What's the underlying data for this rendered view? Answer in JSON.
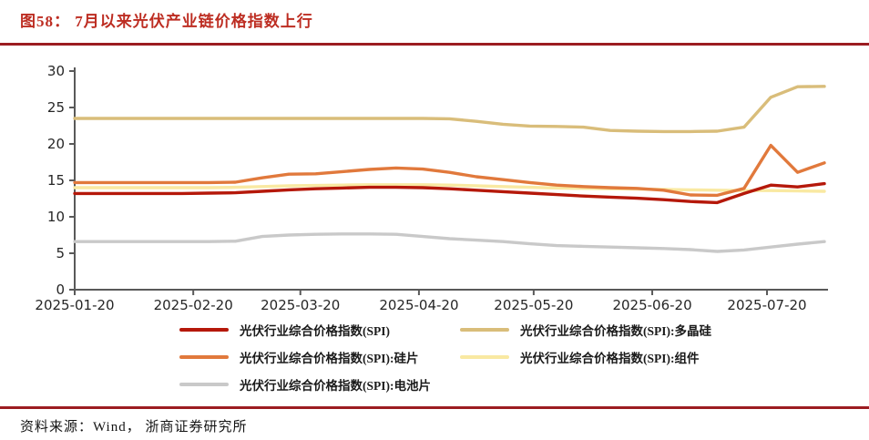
{
  "header": {
    "title": "图58：  7月以来光伏产业链价格指数上行",
    "accent_color": "#9c1c21",
    "title_color": "#bd2d22"
  },
  "footer": {
    "source": "资料来源：Wind， 浙商证券研究所"
  },
  "chart_data": {
    "type": "line",
    "title": "",
    "xlabel": "",
    "ylabel": "",
    "ylim": [
      0,
      30
    ],
    "yticks": [
      0,
      5,
      10,
      15,
      20,
      25,
      30
    ],
    "xticks": [
      "2025-01-20",
      "2025-02-20",
      "2025-03-20",
      "2025-04-20",
      "2025-05-20",
      "2025-06-20",
      "2025-07-20"
    ],
    "grid": false,
    "legend_position": "bottom",
    "axis_color": "#595959",
    "x": [
      "2025-01-20",
      "2025-01-27",
      "2025-02-03",
      "2025-02-10",
      "2025-02-17",
      "2025-02-24",
      "2025-03-03",
      "2025-03-10",
      "2025-03-17",
      "2025-03-24",
      "2025-03-31",
      "2025-04-07",
      "2025-04-14",
      "2025-04-21",
      "2025-04-28",
      "2025-05-05",
      "2025-05-12",
      "2025-05-19",
      "2025-05-26",
      "2025-06-02",
      "2025-06-09",
      "2025-06-16",
      "2025-06-23",
      "2025-06-30",
      "2025-07-07",
      "2025-07-14",
      "2025-07-21",
      "2025-07-28",
      "2025-08-04"
    ],
    "series": [
      {
        "name": "光伏行业综合价格指数(SPI)",
        "color": "#b5180a",
        "values": [
          13.2,
          13.2,
          13.2,
          13.2,
          13.2,
          13.25,
          13.3,
          13.5,
          13.7,
          13.85,
          13.95,
          14.05,
          14.05,
          14.0,
          13.85,
          13.65,
          13.45,
          13.25,
          13.05,
          12.85,
          12.7,
          12.55,
          12.35,
          12.1,
          11.95,
          13.2,
          14.35,
          14.1,
          14.55
        ]
      },
      {
        "name": "光伏行业综合价格指数(SPI):多晶硅",
        "color": "#d9bd7a",
        "values": [
          23.5,
          23.5,
          23.5,
          23.5,
          23.5,
          23.5,
          23.5,
          23.5,
          23.5,
          23.5,
          23.5,
          23.5,
          23.5,
          23.5,
          23.45,
          23.1,
          22.7,
          22.45,
          22.4,
          22.3,
          21.85,
          21.75,
          21.7,
          21.7,
          21.75,
          22.3,
          26.4,
          27.85,
          27.9
        ]
      },
      {
        "name": "光伏行业综合价格指数(SPI):硅片",
        "color": "#e1793c",
        "values": [
          14.7,
          14.7,
          14.7,
          14.7,
          14.7,
          14.7,
          14.75,
          15.35,
          15.85,
          15.9,
          16.2,
          16.5,
          16.7,
          16.55,
          16.1,
          15.5,
          15.1,
          14.7,
          14.35,
          14.15,
          14.0,
          13.9,
          13.65,
          13.0,
          12.95,
          13.9,
          19.8,
          16.1,
          17.4
        ]
      },
      {
        "name": "光伏行业综合价格指数(SPI):组件",
        "color": "#f9e9a2",
        "values": [
          14.0,
          14.0,
          14.0,
          14.0,
          14.0,
          14.0,
          14.05,
          14.15,
          14.25,
          14.3,
          14.35,
          14.4,
          14.4,
          14.4,
          14.35,
          14.25,
          14.15,
          14.05,
          13.95,
          13.9,
          13.85,
          13.8,
          13.75,
          13.7,
          13.65,
          13.6,
          13.6,
          13.55,
          13.5
        ]
      },
      {
        "name": "光伏行业综合价格指数(SPI):电池片",
        "color": "#c9c9c9",
        "values": [
          6.6,
          6.6,
          6.6,
          6.6,
          6.6,
          6.6,
          6.65,
          7.3,
          7.5,
          7.6,
          7.65,
          7.65,
          7.6,
          7.3,
          7.0,
          6.8,
          6.6,
          6.3,
          6.05,
          5.95,
          5.85,
          5.75,
          5.65,
          5.5,
          5.25,
          5.45,
          5.85,
          6.25,
          6.6
        ]
      }
    ]
  }
}
